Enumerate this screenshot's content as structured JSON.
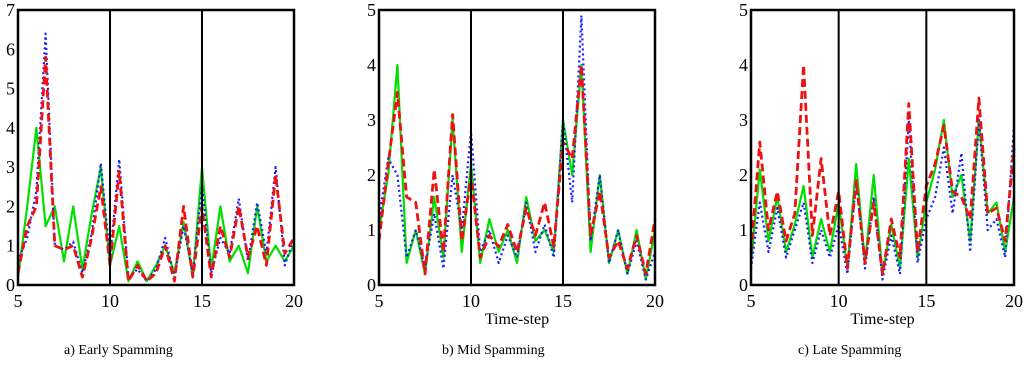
{
  "chart_data": [
    {
      "type": "line",
      "caption": "a) Early Spamming",
      "xlabel": "",
      "ylabel": "",
      "xlim": [
        5,
        20
      ],
      "ylim": [
        0,
        7
      ],
      "xticks": [
        "5",
        "10",
        "15",
        "20"
      ],
      "yticks": [
        "0",
        "1",
        "2",
        "3",
        "4",
        "5",
        "6",
        "7"
      ],
      "vlines": [
        10,
        15
      ],
      "grid": false,
      "series": [
        {
          "color": "#00e000",
          "style": "solid",
          "x": [
            5,
            5.5,
            6,
            6.5,
            7,
            7.5,
            8,
            8.5,
            9,
            9.5,
            10,
            10.5,
            11,
            11.5,
            12,
            12.5,
            13,
            13.5,
            14,
            14.5,
            15,
            15.5,
            16,
            16.5,
            17,
            17.5,
            18,
            18.5,
            19,
            19.5,
            20
          ],
          "y": [
            0.2,
            2.0,
            4.0,
            1.5,
            2.0,
            0.6,
            2.0,
            0.4,
            1.8,
            3.0,
            0.5,
            1.5,
            0.1,
            0.6,
            0.1,
            0.5,
            1.0,
            0.3,
            1.6,
            0.2,
            3.0,
            0.4,
            2.0,
            0.6,
            1.0,
            0.3,
            2.0,
            0.6,
            1.0,
            0.6,
            1.0
          ]
        },
        {
          "color": "#1a1aff",
          "style": "dotted",
          "x": [
            5,
            5.5,
            6,
            6.5,
            7,
            7.5,
            8,
            8.5,
            9,
            9.5,
            10,
            10.5,
            11,
            11.5,
            12,
            12.5,
            13,
            13.5,
            14,
            14.5,
            15,
            15.5,
            16,
            16.5,
            17,
            17.5,
            18,
            18.5,
            19,
            19.5,
            20
          ],
          "y": [
            0.6,
            1.2,
            2.4,
            6.4,
            1.0,
            0.9,
            1.1,
            0.3,
            1.3,
            3.1,
            0.7,
            3.2,
            0.2,
            0.4,
            0.1,
            0.4,
            1.2,
            0.2,
            1.5,
            0.3,
            2.5,
            0.3,
            1.2,
            0.8,
            2.2,
            0.6,
            2.1,
            0.8,
            3.0,
            0.5,
            1.2
          ]
        },
        {
          "color": "#ee1111",
          "style": "dashed",
          "x": [
            5,
            5.5,
            6,
            6.5,
            7,
            7.5,
            8,
            8.5,
            9,
            9.5,
            10,
            10.5,
            11,
            11.5,
            12,
            12.5,
            13,
            13.5,
            14,
            14.5,
            15,
            15.5,
            16,
            16.5,
            17,
            17.5,
            18,
            18.5,
            19,
            19.5,
            20
          ],
          "y": [
            0.3,
            1.5,
            2.0,
            5.8,
            1.0,
            0.9,
            1.0,
            0.2,
            1.2,
            2.5,
            0.5,
            2.9,
            0.1,
            0.5,
            0.1,
            0.3,
            1.0,
            0.1,
            2.0,
            0.2,
            2.0,
            0.2,
            1.5,
            0.7,
            2.0,
            0.7,
            1.5,
            0.5,
            2.8,
            0.8,
            1.2
          ]
        }
      ]
    },
    {
      "type": "line",
      "caption": "b) Mid Spamming",
      "xlabel": "Time-step",
      "ylabel": "",
      "xlim": [
        5,
        20
      ],
      "ylim": [
        0,
        5
      ],
      "xticks": [
        "5",
        "10",
        "15",
        "20"
      ],
      "yticks": [
        "0",
        "1",
        "2",
        "3",
        "4",
        "5"
      ],
      "vlines": [
        10,
        15
      ],
      "grid": false,
      "series": [
        {
          "color": "#00e000",
          "style": "solid",
          "x": [
            5,
            5.5,
            6,
            6.5,
            7,
            7.5,
            8,
            8.5,
            9,
            9.5,
            10,
            10.5,
            11,
            11.5,
            12,
            12.5,
            13,
            13.5,
            14,
            14.5,
            15,
            15.5,
            16,
            16.5,
            17,
            17.5,
            18,
            18.5,
            19,
            19.5,
            20
          ],
          "y": [
            1.0,
            2.0,
            4.0,
            0.4,
            1.0,
            0.2,
            1.6,
            0.5,
            3.0,
            0.6,
            2.2,
            0.4,
            1.2,
            0.6,
            1.0,
            0.4,
            1.6,
            0.8,
            1.0,
            0.6,
            3.0,
            2.0,
            4.0,
            0.6,
            2.0,
            0.4,
            1.0,
            0.2,
            1.0,
            0.1,
            1.0
          ]
        },
        {
          "color": "#1a1aff",
          "style": "dotted",
          "x": [
            5,
            5.5,
            6,
            6.5,
            7,
            7.5,
            8,
            8.5,
            9,
            9.5,
            10,
            10.5,
            11,
            11.5,
            12,
            12.5,
            13,
            13.5,
            14,
            14.5,
            15,
            15.5,
            16,
            16.5,
            17,
            17.5,
            18,
            18.5,
            19,
            19.5,
            20
          ],
          "y": [
            1.2,
            2.3,
            2.0,
            0.5,
            1.0,
            0.3,
            1.3,
            0.3,
            2.0,
            1.0,
            2.8,
            0.6,
            1.0,
            0.4,
            0.9,
            0.5,
            1.5,
            0.6,
            1.1,
            0.5,
            3.0,
            1.5,
            4.9,
            0.8,
            2.0,
            0.4,
            1.0,
            0.2,
            0.8,
            0.1,
            0.6
          ]
        },
        {
          "color": "#ee1111",
          "style": "dashed",
          "x": [
            5,
            5.5,
            6,
            6.5,
            7,
            7.5,
            8,
            8.5,
            9,
            9.5,
            10,
            10.5,
            11,
            11.5,
            12,
            12.5,
            13,
            13.5,
            14,
            14.5,
            15,
            15.5,
            16,
            16.5,
            17,
            17.5,
            18,
            18.5,
            19,
            19.5,
            20
          ],
          "y": [
            0.8,
            2.2,
            3.5,
            1.6,
            1.5,
            0.2,
            2.1,
            0.6,
            3.1,
            0.8,
            2.0,
            0.5,
            0.9,
            0.7,
            1.1,
            0.6,
            1.4,
            0.9,
            1.5,
            0.7,
            2.6,
            2.3,
            4.0,
            0.9,
            1.7,
            0.5,
            0.8,
            0.3,
            0.9,
            0.2,
            1.2
          ]
        }
      ]
    },
    {
      "type": "line",
      "caption": "c) Late Spamming",
      "xlabel": "Time-step",
      "ylabel": "",
      "xlim": [
        5,
        20
      ],
      "ylim": [
        0,
        5
      ],
      "xticks": [
        "5",
        "10",
        "15",
        "20"
      ],
      "yticks": [
        "0",
        "1",
        "2",
        "3",
        "4",
        "5"
      ],
      "vlines": [
        10,
        15
      ],
      "grid": false,
      "series": [
        {
          "color": "#00e000",
          "style": "solid",
          "x": [
            5,
            5.5,
            6,
            6.5,
            7,
            7.5,
            8,
            8.5,
            9,
            9.5,
            10,
            10.5,
            11,
            11.5,
            12,
            12.5,
            13,
            13.5,
            14,
            14.5,
            15,
            15.5,
            16,
            16.5,
            17,
            17.5,
            18,
            18.5,
            19,
            19.5,
            20
          ],
          "y": [
            0.4,
            2.1,
            0.8,
            1.6,
            0.6,
            1.1,
            1.8,
            0.5,
            1.2,
            0.6,
            1.5,
            0.3,
            2.2,
            0.4,
            2.0,
            0.2,
            1.1,
            0.3,
            2.3,
            0.5,
            1.5,
            2.1,
            3.0,
            1.6,
            2.0,
            0.8,
            3.0,
            1.3,
            1.5,
            0.6,
            1.6
          ]
        },
        {
          "color": "#1a1aff",
          "style": "dotted",
          "x": [
            5,
            5.5,
            6,
            6.5,
            7,
            7.5,
            8,
            8.5,
            9,
            9.5,
            10,
            10.5,
            11,
            11.5,
            12,
            12.5,
            13,
            13.5,
            14,
            14.5,
            15,
            15.5,
            16,
            16.5,
            17,
            17.5,
            18,
            18.5,
            19,
            19.5,
            20
          ],
          "y": [
            0.3,
            1.5,
            0.6,
            1.4,
            0.5,
            1.0,
            1.5,
            0.4,
            1.0,
            0.5,
            1.1,
            0.2,
            1.9,
            0.3,
            1.6,
            0.1,
            0.9,
            0.2,
            3.0,
            0.4,
            1.2,
            1.6,
            2.5,
            1.3,
            2.4,
            0.6,
            3.0,
            1.0,
            1.2,
            0.5,
            2.9
          ]
        },
        {
          "color": "#ee1111",
          "style": "dashed",
          "x": [
            5,
            5.5,
            6,
            6.5,
            7,
            7.5,
            8,
            8.5,
            9,
            9.5,
            10,
            10.5,
            11,
            11.5,
            12,
            12.5,
            13,
            13.5,
            14,
            14.5,
            15,
            15.5,
            16,
            16.5,
            17,
            17.5,
            18,
            18.5,
            19,
            19.5,
            20
          ],
          "y": [
            0.6,
            2.6,
            1.0,
            1.7,
            0.8,
            1.3,
            4.0,
            0.9,
            2.3,
            0.9,
            1.7,
            0.3,
            1.9,
            0.4,
            1.5,
            0.2,
            1.2,
            0.5,
            3.3,
            0.6,
            1.8,
            2.2,
            2.9,
            1.7,
            1.6,
            1.2,
            3.4,
            1.3,
            1.4,
            0.8,
            2.5
          ]
        }
      ]
    }
  ]
}
